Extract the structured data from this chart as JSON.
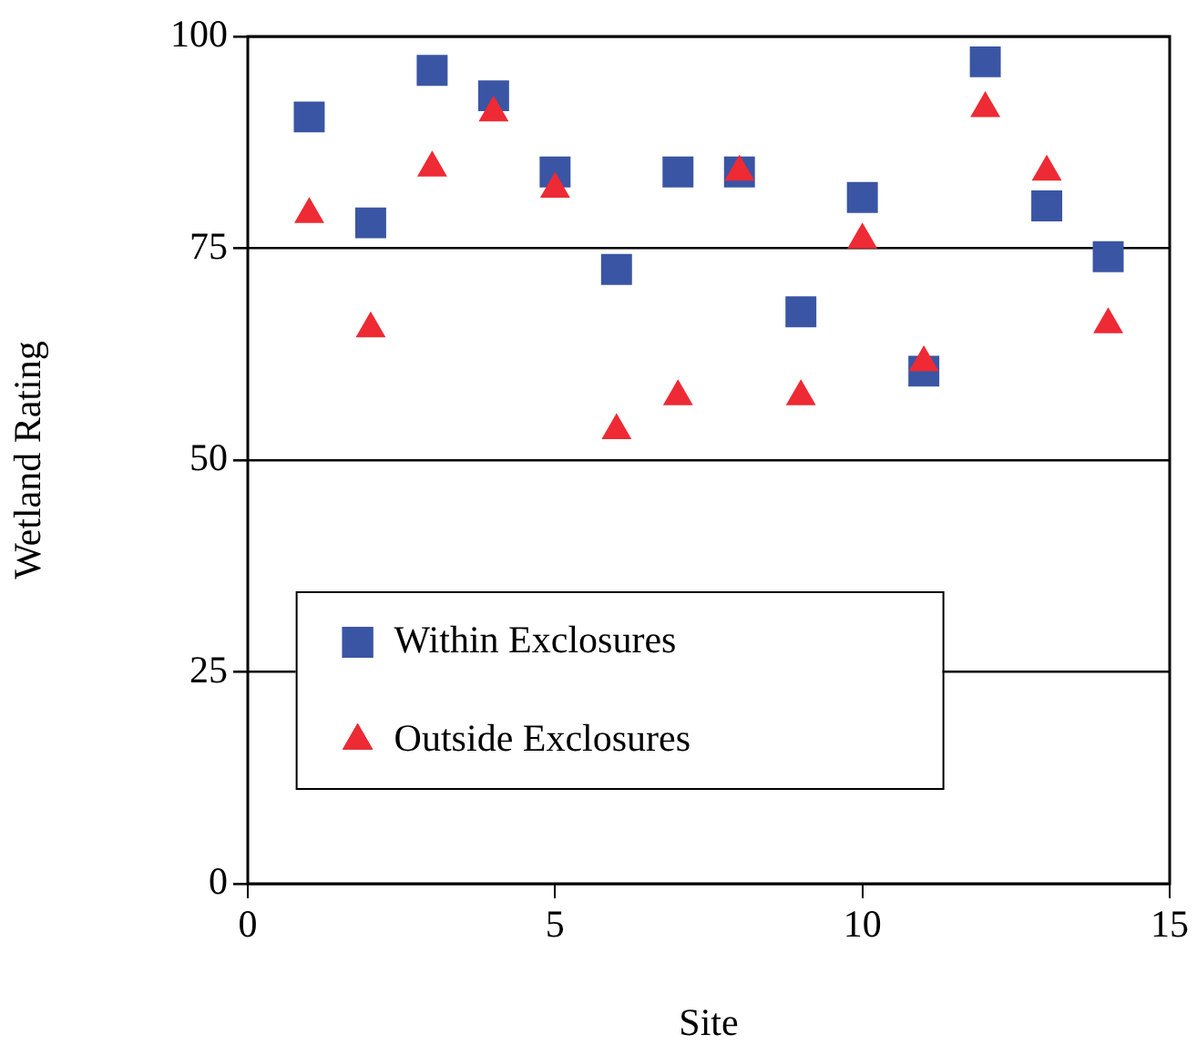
{
  "chart_data": {
    "type": "scatter",
    "xlabel": "Site",
    "ylabel": "Wetland Rating",
    "x": [
      1,
      2,
      3,
      4,
      5,
      6,
      7,
      8,
      9,
      10,
      11,
      12,
      13,
      14
    ],
    "series": [
      {
        "name": "Within Exclosures",
        "color": "#3a55a4",
        "marker": "square",
        "values": [
          90.5,
          78,
          96,
          93,
          84,
          72.5,
          84,
          84,
          67.5,
          81,
          60.5,
          97,
          80,
          74
        ]
      },
      {
        "name": "Outside Exclosures",
        "color": "#ee2a34",
        "marker": "triangle",
        "values": [
          79,
          65.5,
          84.5,
          91,
          82,
          53.5,
          57.5,
          84,
          57.5,
          76,
          61.5,
          91.5,
          84,
          66
        ]
      }
    ],
    "xlim": [
      0,
      15
    ],
    "xticks": [
      0,
      5,
      10,
      15
    ],
    "ylim": [
      0,
      100
    ],
    "yticks": [
      0,
      25,
      50,
      75,
      100
    ],
    "grid": "y",
    "legend": "bottom left"
  }
}
